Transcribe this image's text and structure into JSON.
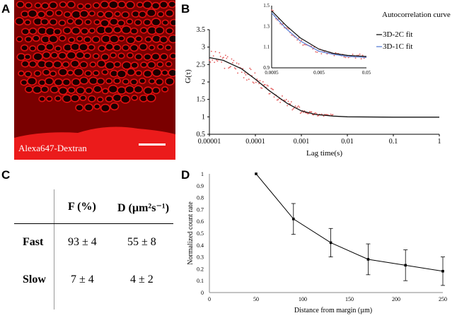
{
  "panels": {
    "a": {
      "label": "A",
      "caption": "Alexa647-Dextran"
    },
    "b": {
      "label": "B"
    },
    "c": {
      "label": "C"
    },
    "d": {
      "label": "D"
    }
  },
  "table": {
    "col_headers": [
      "F (%)",
      "D (µm²s⁻¹)"
    ],
    "rows": [
      {
        "label": "Fast",
        "f": "93 ± 4",
        "d": "55 ± 8"
      },
      {
        "label": "Slow",
        "f": "7 ± 4",
        "d": "4 ± 2"
      }
    ]
  },
  "chart_data": [
    {
      "type": "scatter",
      "panel": "B",
      "xlabel": "Lag time(s)",
      "ylabel": "G(τ)",
      "x_scale": "log",
      "xlim": [
        1e-05,
        1
      ],
      "ylim": [
        0.5,
        3.5
      ],
      "x_ticks": [
        "0.00001",
        "0.0001",
        "0.001",
        "0.01",
        "0.1",
        "1"
      ],
      "y_ticks": [
        "0.5",
        "1",
        "1.5",
        "2",
        "2.5",
        "3",
        "3.5"
      ],
      "legend": [
        "Autocorrelation curve",
        "3D-2C fit",
        "3D-1C fit"
      ],
      "legend_position": "top-right",
      "colors": {
        "data": "#e35a5a",
        "fit2c": "#111111",
        "fit1c": "#5b7fd6"
      },
      "fit_curve": {
        "x": [
          1e-05,
          2e-05,
          5e-05,
          0.0001,
          0.0002,
          0.0005,
          0.001,
          0.002,
          0.005,
          0.01,
          0.1,
          1
        ],
        "y": [
          2.7,
          2.62,
          2.38,
          2.08,
          1.75,
          1.38,
          1.17,
          1.07,
          1.02,
          1.0,
          0.99,
          0.99
        ]
      },
      "inset": {
        "xlim": [
          0.0005,
          0.05
        ],
        "ylim": [
          0.9,
          1.5
        ],
        "x_ticks": [
          "0.0005",
          "0.005",
          "0.05"
        ],
        "y_ticks": [
          "0.9",
          "1.1",
          "1.3",
          "1.5"
        ],
        "fit2c": {
          "x": [
            0.0005,
            0.001,
            0.002,
            0.005,
            0.01,
            0.02,
            0.05
          ],
          "y": [
            1.45,
            1.31,
            1.19,
            1.08,
            1.04,
            1.02,
            1.01
          ]
        },
        "fit1c": {
          "x": [
            0.0005,
            0.001,
            0.002,
            0.005,
            0.01,
            0.02,
            0.05
          ],
          "y": [
            1.43,
            1.28,
            1.16,
            1.06,
            1.03,
            1.01,
            1.0
          ]
        }
      }
    },
    {
      "type": "line",
      "panel": "D",
      "xlabel": "Distance from margin (µm)",
      "ylabel": "Normalized count rate",
      "xlim": [
        0,
        250
      ],
      "ylim": [
        0,
        1
      ],
      "x_ticks": [
        "0",
        "50",
        "100",
        "150",
        "200",
        "250"
      ],
      "y_ticks": [
        "0",
        "0.1",
        "0.2",
        "0.3",
        "0.4",
        "0.5",
        "0.6",
        "0.7",
        "0.8",
        "0.9",
        "1"
      ],
      "x": [
        50,
        90,
        130,
        170,
        210,
        250
      ],
      "y": [
        1.0,
        0.62,
        0.42,
        0.28,
        0.23,
        0.18
      ],
      "error": [
        0,
        0.13,
        0.12,
        0.13,
        0.13,
        0.12
      ]
    }
  ]
}
